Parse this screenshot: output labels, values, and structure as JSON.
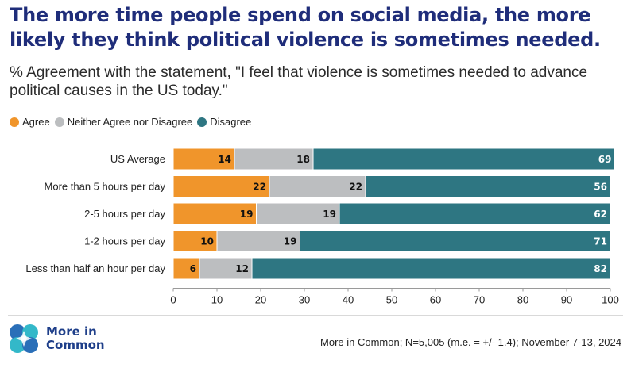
{
  "title": "The more time people spend on social media, the more likely they think political violence is sometimes needed.",
  "subtitle": "% Agreement with the statement, \"I feel that violence is sometimes needed to advance political causes in the US today.\"",
  "legend": [
    {
      "label": "Agree",
      "color": "#f0952b"
    },
    {
      "label": "Neither Agree nor Disagree",
      "color": "#bcbec0"
    },
    {
      "label": "Disagree",
      "color": "#2e7682"
    }
  ],
  "chart_data": {
    "type": "bar",
    "orientation": "horizontal",
    "stacked": true,
    "categories": [
      "US Average",
      "More than 5 hours per day",
      "2-5 hours per day",
      "1-2 hours per day",
      "Less than half an hour per day"
    ],
    "series": [
      {
        "name": "Agree",
        "color": "#f0952b",
        "values": [
          14,
          22,
          19,
          10,
          6
        ]
      },
      {
        "name": "Neither Agree nor Disagree",
        "color": "#bcbec0",
        "values": [
          18,
          22,
          19,
          19,
          12
        ]
      },
      {
        "name": "Disagree",
        "color": "#2e7682",
        "values": [
          69,
          56,
          62,
          71,
          82
        ]
      }
    ],
    "xlim": [
      0,
      100
    ],
    "xticks": [
      0,
      10,
      20,
      30,
      40,
      50,
      60,
      70,
      80,
      90,
      100
    ],
    "grid": false,
    "legend_position": "top-left"
  },
  "source": "More in Common; N=5,005 (m.e. = +/- 1.4); November 7-13, 2024",
  "logo": {
    "line1": "More in",
    "line2": "Common"
  }
}
